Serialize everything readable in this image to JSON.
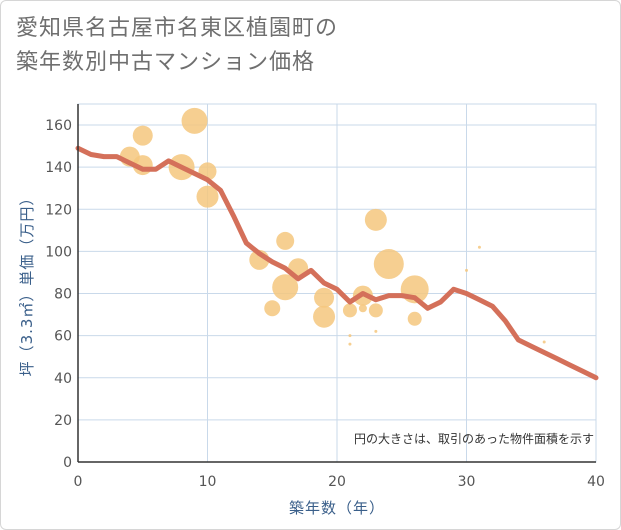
{
  "title_line1": "愛知県名古屋市名東区植園町の",
  "title_line2": "築年数別中古マンション価格",
  "chart_data": {
    "type": "scatter",
    "xlabel": "築年数（年）",
    "ylabel": "坪（3.3㎡）単価（万円）",
    "xlim": [
      0,
      40
    ],
    "ylim": [
      0,
      170
    ],
    "xticks": [
      0,
      10,
      20,
      30,
      40
    ],
    "yticks": [
      0,
      20,
      40,
      60,
      80,
      100,
      120,
      140,
      160
    ],
    "grid": true,
    "note": "円の大きさは、取引のあった物件面積を示す",
    "colors": {
      "bubble": "#f5c77e",
      "line": "#d4705a",
      "grid": "#c9d9ea"
    },
    "bubbles": [
      {
        "x": 4,
        "y": 145,
        "s": 10
      },
      {
        "x": 5,
        "y": 155,
        "s": 10
      },
      {
        "x": 5,
        "y": 141,
        "s": 10
      },
      {
        "x": 8,
        "y": 140,
        "s": 13
      },
      {
        "x": 9,
        "y": 162,
        "s": 13
      },
      {
        "x": 10,
        "y": 138,
        "s": 9
      },
      {
        "x": 10,
        "y": 126,
        "s": 11
      },
      {
        "x": 14,
        "y": 96,
        "s": 10
      },
      {
        "x": 15,
        "y": 73,
        "s": 8
      },
      {
        "x": 16,
        "y": 105,
        "s": 9
      },
      {
        "x": 16,
        "y": 83,
        "s": 13
      },
      {
        "x": 17,
        "y": 92,
        "s": 10
      },
      {
        "x": 19,
        "y": 78,
        "s": 10
      },
      {
        "x": 19,
        "y": 69,
        "s": 11
      },
      {
        "x": 21,
        "y": 72,
        "s": 7
      },
      {
        "x": 21,
        "y": 60,
        "s": 1.5
      },
      {
        "x": 21,
        "y": 56,
        "s": 1.5
      },
      {
        "x": 22,
        "y": 79,
        "s": 10
      },
      {
        "x": 22,
        "y": 73,
        "s": 4
      },
      {
        "x": 23,
        "y": 115,
        "s": 11
      },
      {
        "x": 23,
        "y": 72,
        "s": 7
      },
      {
        "x": 23,
        "y": 62,
        "s": 1.5
      },
      {
        "x": 24,
        "y": 94,
        "s": 15
      },
      {
        "x": 26,
        "y": 82,
        "s": 14
      },
      {
        "x": 26,
        "y": 68,
        "s": 7
      },
      {
        "x": 30,
        "y": 91,
        "s": 1.5
      },
      {
        "x": 31,
        "y": 102,
        "s": 1.5
      },
      {
        "x": 36,
        "y": 57,
        "s": 1.5
      }
    ],
    "trend": {
      "x": [
        0,
        1,
        2,
        3,
        4,
        5,
        6,
        7,
        8,
        9,
        10,
        11,
        12,
        13,
        14,
        15,
        16,
        17,
        18,
        19,
        20,
        21,
        22,
        23,
        24,
        25,
        26,
        27,
        28,
        29,
        30,
        31,
        32,
        33,
        34,
        35,
        36,
        37,
        38,
        39,
        40
      ],
      "y": [
        149,
        146,
        145,
        145,
        142,
        139,
        139,
        143,
        140,
        137,
        134,
        129,
        117,
        104,
        99,
        95,
        92,
        87,
        91,
        85,
        82,
        76,
        80,
        77,
        79,
        79,
        78,
        73,
        76,
        82,
        80,
        77,
        74,
        67,
        58,
        55,
        52,
        49,
        46,
        43,
        40
      ]
    }
  }
}
